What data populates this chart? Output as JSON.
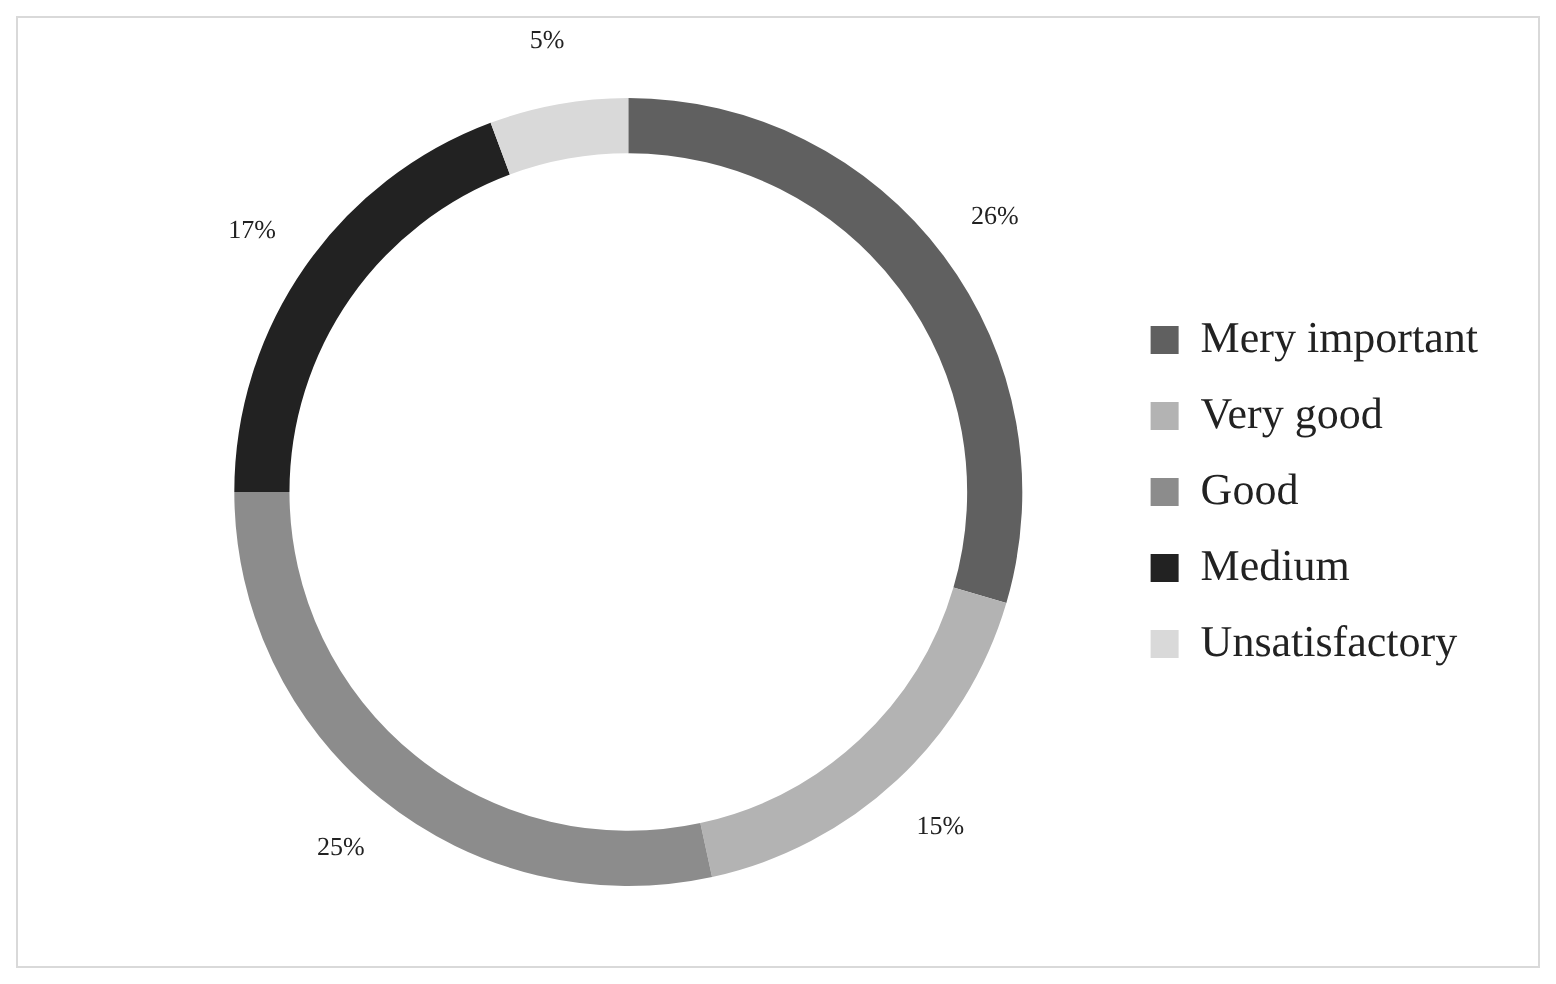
{
  "chart_data": {
    "type": "donut",
    "categories": [
      "Mery important",
      "Very good",
      "Good",
      "Medium",
      "Unsatisfactory"
    ],
    "values": [
      26,
      15,
      25,
      17,
      5
    ],
    "colors": [
      "#606060",
      "#b3b3b3",
      "#8c8c8c",
      "#222222",
      "#d9d9d9"
    ],
    "value_labels": [
      "26%",
      "15%",
      "25%",
      "17%",
      "5%"
    ],
    "legend": "right"
  }
}
